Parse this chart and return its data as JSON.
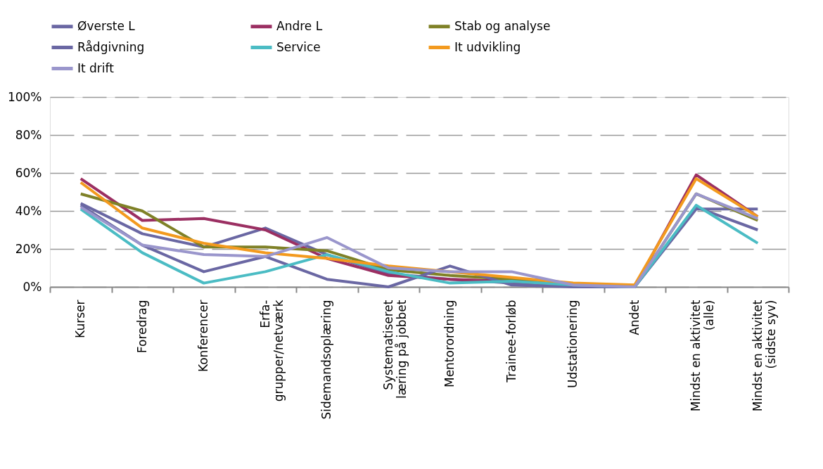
{
  "chart_data": {
    "type": "line",
    "categories": [
      "Kurser",
      "Foredrag",
      "Konferencer",
      "Erfa-\ngrupper/netværk",
      "Sidemandsoplæring",
      "Systematiseret\nlæring på jobbet",
      "Mentorordning",
      "Trainee-forløb",
      "Udstationering",
      "Andet",
      "Mindst en aktivitet\n(alle)",
      "Mindst en aktivitet\n(sidste syv)"
    ],
    "series": [
      {
        "name": "Øverste L",
        "color": "#6a67a3",
        "values": [
          44,
          28,
          21,
          31,
          17,
          7,
          4,
          2,
          1,
          0,
          41,
          41
        ]
      },
      {
        "name": "Andre L",
        "color": "#9b2f62",
        "values": [
          57,
          35,
          36,
          30,
          15,
          6,
          4,
          3,
          1,
          0,
          59,
          37
        ]
      },
      {
        "name": "Stab og analyse",
        "color": "#7f8127",
        "values": [
          49,
          40,
          21,
          21,
          19,
          9,
          6,
          4,
          1,
          0,
          49,
          35
        ]
      },
      {
        "name": "Rådgivning",
        "color": "#6a67a3",
        "values": [
          43,
          22,
          8,
          16,
          4,
          0,
          11,
          1,
          0,
          0,
          42,
          30
        ]
      },
      {
        "name": "Service",
        "color": "#4bbcc4",
        "values": [
          41,
          18,
          2,
          8,
          17,
          8,
          2,
          3,
          1,
          0,
          43,
          23
        ]
      },
      {
        "name": "It udvikling",
        "color": "#f39a1e",
        "values": [
          55,
          31,
          23,
          18,
          15,
          11,
          8,
          5,
          2,
          1,
          57,
          37
        ]
      },
      {
        "name": "It drift",
        "color": "#9a96cc",
        "values": [
          42,
          22,
          17,
          16,
          26,
          10,
          8,
          8,
          1,
          0,
          49,
          36
        ]
      }
    ],
    "ylim": [
      0,
      100
    ],
    "yticks": [
      {
        "value": 0,
        "label": "0%"
      },
      {
        "value": 20,
        "label": "20%"
      },
      {
        "value": 40,
        "label": "40%"
      },
      {
        "value": 60,
        "label": "60%"
      },
      {
        "value": 80,
        "label": "80%"
      },
      {
        "value": 100,
        "label": "100%"
      }
    ],
    "grid": "y",
    "legend": "top",
    "marker": "none",
    "line_style": "solid"
  }
}
